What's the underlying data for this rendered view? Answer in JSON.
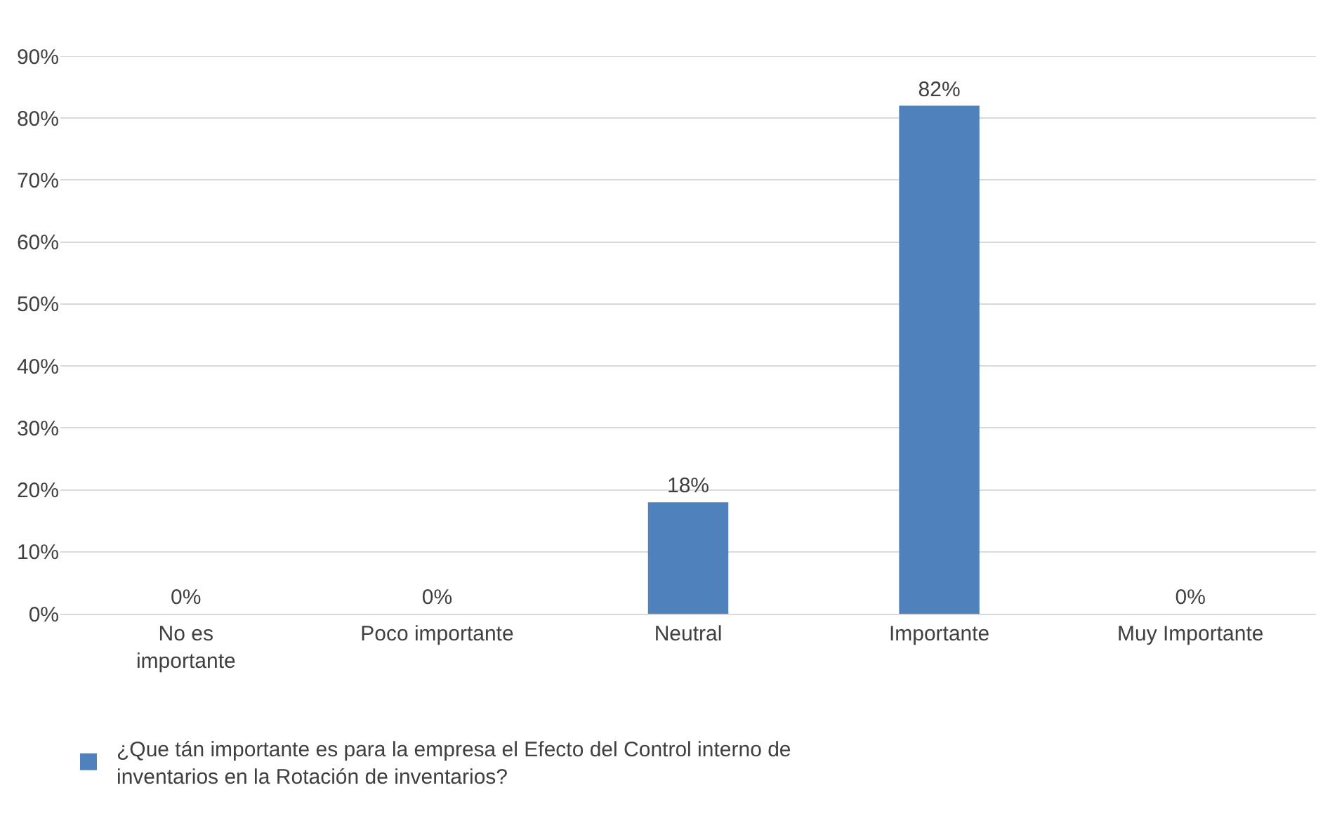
{
  "chart_data": {
    "type": "bar",
    "categories": [
      "No es importante",
      "Poco importante",
      "Neutral",
      "Importante",
      "Muy Importante"
    ],
    "series": [
      {
        "name": "¿Que tán importante es para la empresa el Efecto del Control interno de inventarios en la Rotación de inventarios?",
        "color": "#4f81bd",
        "values": [
          0,
          0,
          18,
          82,
          0
        ],
        "value_labels": [
          "0%",
          "0%",
          "18%",
          "82%",
          "0%"
        ]
      }
    ],
    "ylim": [
      0,
      90
    ],
    "yticks": [
      {
        "value": 0,
        "label": "0%"
      },
      {
        "value": 10,
        "label": "10%"
      },
      {
        "value": 20,
        "label": "20%"
      },
      {
        "value": 30,
        "label": "30%"
      },
      {
        "value": 40,
        "label": "40%"
      },
      {
        "value": 50,
        "label": "50%"
      },
      {
        "value": 60,
        "label": "60%"
      },
      {
        "value": 70,
        "label": "70%"
      },
      {
        "value": 80,
        "label": "80%"
      },
      {
        "value": 90,
        "label": "90%"
      }
    ],
    "grid": "y",
    "legend": "bottom left"
  }
}
